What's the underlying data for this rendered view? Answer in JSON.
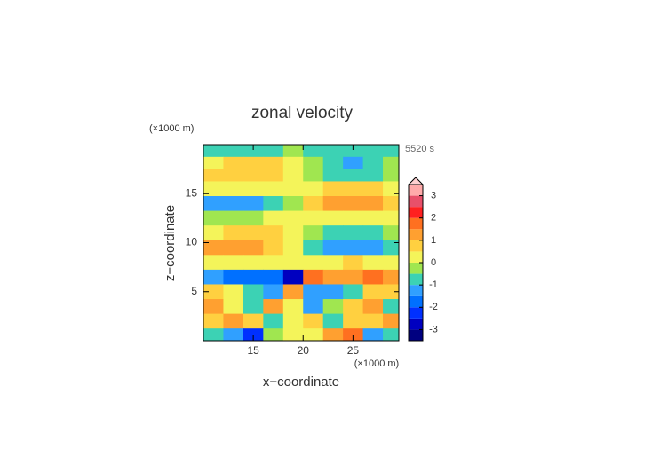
{
  "chart_data": {
    "type": "contour",
    "title": "zonal velocity",
    "time_label": "5520 s",
    "xlabel": "x−coordinate",
    "ylabel": "z−coordinate",
    "x_unit": "(×1000 m)",
    "y_unit": "(×1000 m)",
    "xlim": [
      10,
      29.6
    ],
    "ylim": [
      0,
      20
    ],
    "xticks": [
      15,
      20,
      25
    ],
    "yticks": [
      5,
      10,
      15
    ],
    "x": [
      11,
      13,
      15,
      17,
      19,
      21,
      23,
      25,
      27,
      29
    ],
    "z": [
      19.5,
      18,
      17,
      15.5,
      14,
      12.5,
      11,
      9.5,
      8,
      6.5,
      5,
      3.5,
      2,
      0.5
    ],
    "values": [
      [
        -0.7,
        -0.8,
        -0.9,
        -0.7,
        -0.4,
        -0.6,
        -0.8,
        -0.9,
        -0.8,
        -0.7
      ],
      [
        0.4,
        0.7,
        0.8,
        0.6,
        0.2,
        -0.4,
        -0.8,
        -1.1,
        -0.9,
        -0.5
      ],
      [
        0.6,
        0.9,
        0.9,
        0.7,
        0.3,
        -0.5,
        -0.9,
        -1.0,
        -0.8,
        -0.5
      ],
      [
        0.2,
        0.1,
        0.1,
        0.2,
        0.1,
        0.4,
        0.6,
        0.6,
        0.5,
        0.3
      ],
      [
        -1.2,
        -1.4,
        -1.3,
        -0.9,
        -0.3,
        0.6,
        1.1,
        1.2,
        1.1,
        0.8
      ],
      [
        -0.3,
        -0.3,
        -0.2,
        0.0,
        0.1,
        0.2,
        0.2,
        0.1,
        0.1,
        0.2
      ],
      [
        0.3,
        0.5,
        0.6,
        0.5,
        0.2,
        -0.3,
        -0.6,
        -0.8,
        -0.7,
        -0.5
      ],
      [
        1.0,
        1.1,
        1.1,
        0.8,
        0.3,
        -0.7,
        -1.2,
        -1.3,
        -1.2,
        -1.0
      ],
      [
        0.4,
        0.4,
        0.3,
        0.3,
        0.2,
        0.3,
        0.4,
        0.5,
        0.4,
        0.3
      ],
      [
        -1.3,
        -1.6,
        -1.7,
        -1.8,
        -2.6,
        1.8,
        1.3,
        1.2,
        1.5,
        1.1
      ],
      [
        0.7,
        0.4,
        -0.6,
        -1.3,
        1.2,
        -1.1,
        -1.5,
        -0.6,
        0.8,
        0.6
      ],
      [
        1.2,
        0.3,
        -0.8,
        1.1,
        0.4,
        -1.2,
        -0.5,
        0.9,
        1.3,
        -0.9
      ],
      [
        0.5,
        1.0,
        0.8,
        -0.6,
        0.2,
        0.9,
        -1.0,
        0.6,
        0.7,
        1.2
      ],
      [
        -0.9,
        -1.5,
        -2.2,
        -0.5,
        0.3,
        0.4,
        1.2,
        1.8,
        -1.3,
        -1.0
      ]
    ],
    "levels": [
      -3.5,
      -3,
      -2.5,
      -2,
      -1.5,
      -1,
      -0.5,
      0,
      0.5,
      1,
      1.5,
      2,
      2.5,
      3,
      3.5
    ],
    "colors": [
      "#000080",
      "#0000c0",
      "#0030ff",
      "#0070ff",
      "#30a0ff",
      "#3cd2b4",
      "#a0e650",
      "#f4f45a",
      "#ffd040",
      "#ffa030",
      "#ff7020",
      "#ff2020",
      "#e8506a",
      "#ffaaaa"
    ],
    "extend_color": "#ffd0d0",
    "cbar_ticks": [
      -3,
      -2,
      -1,
      0,
      1,
      2,
      3
    ]
  }
}
